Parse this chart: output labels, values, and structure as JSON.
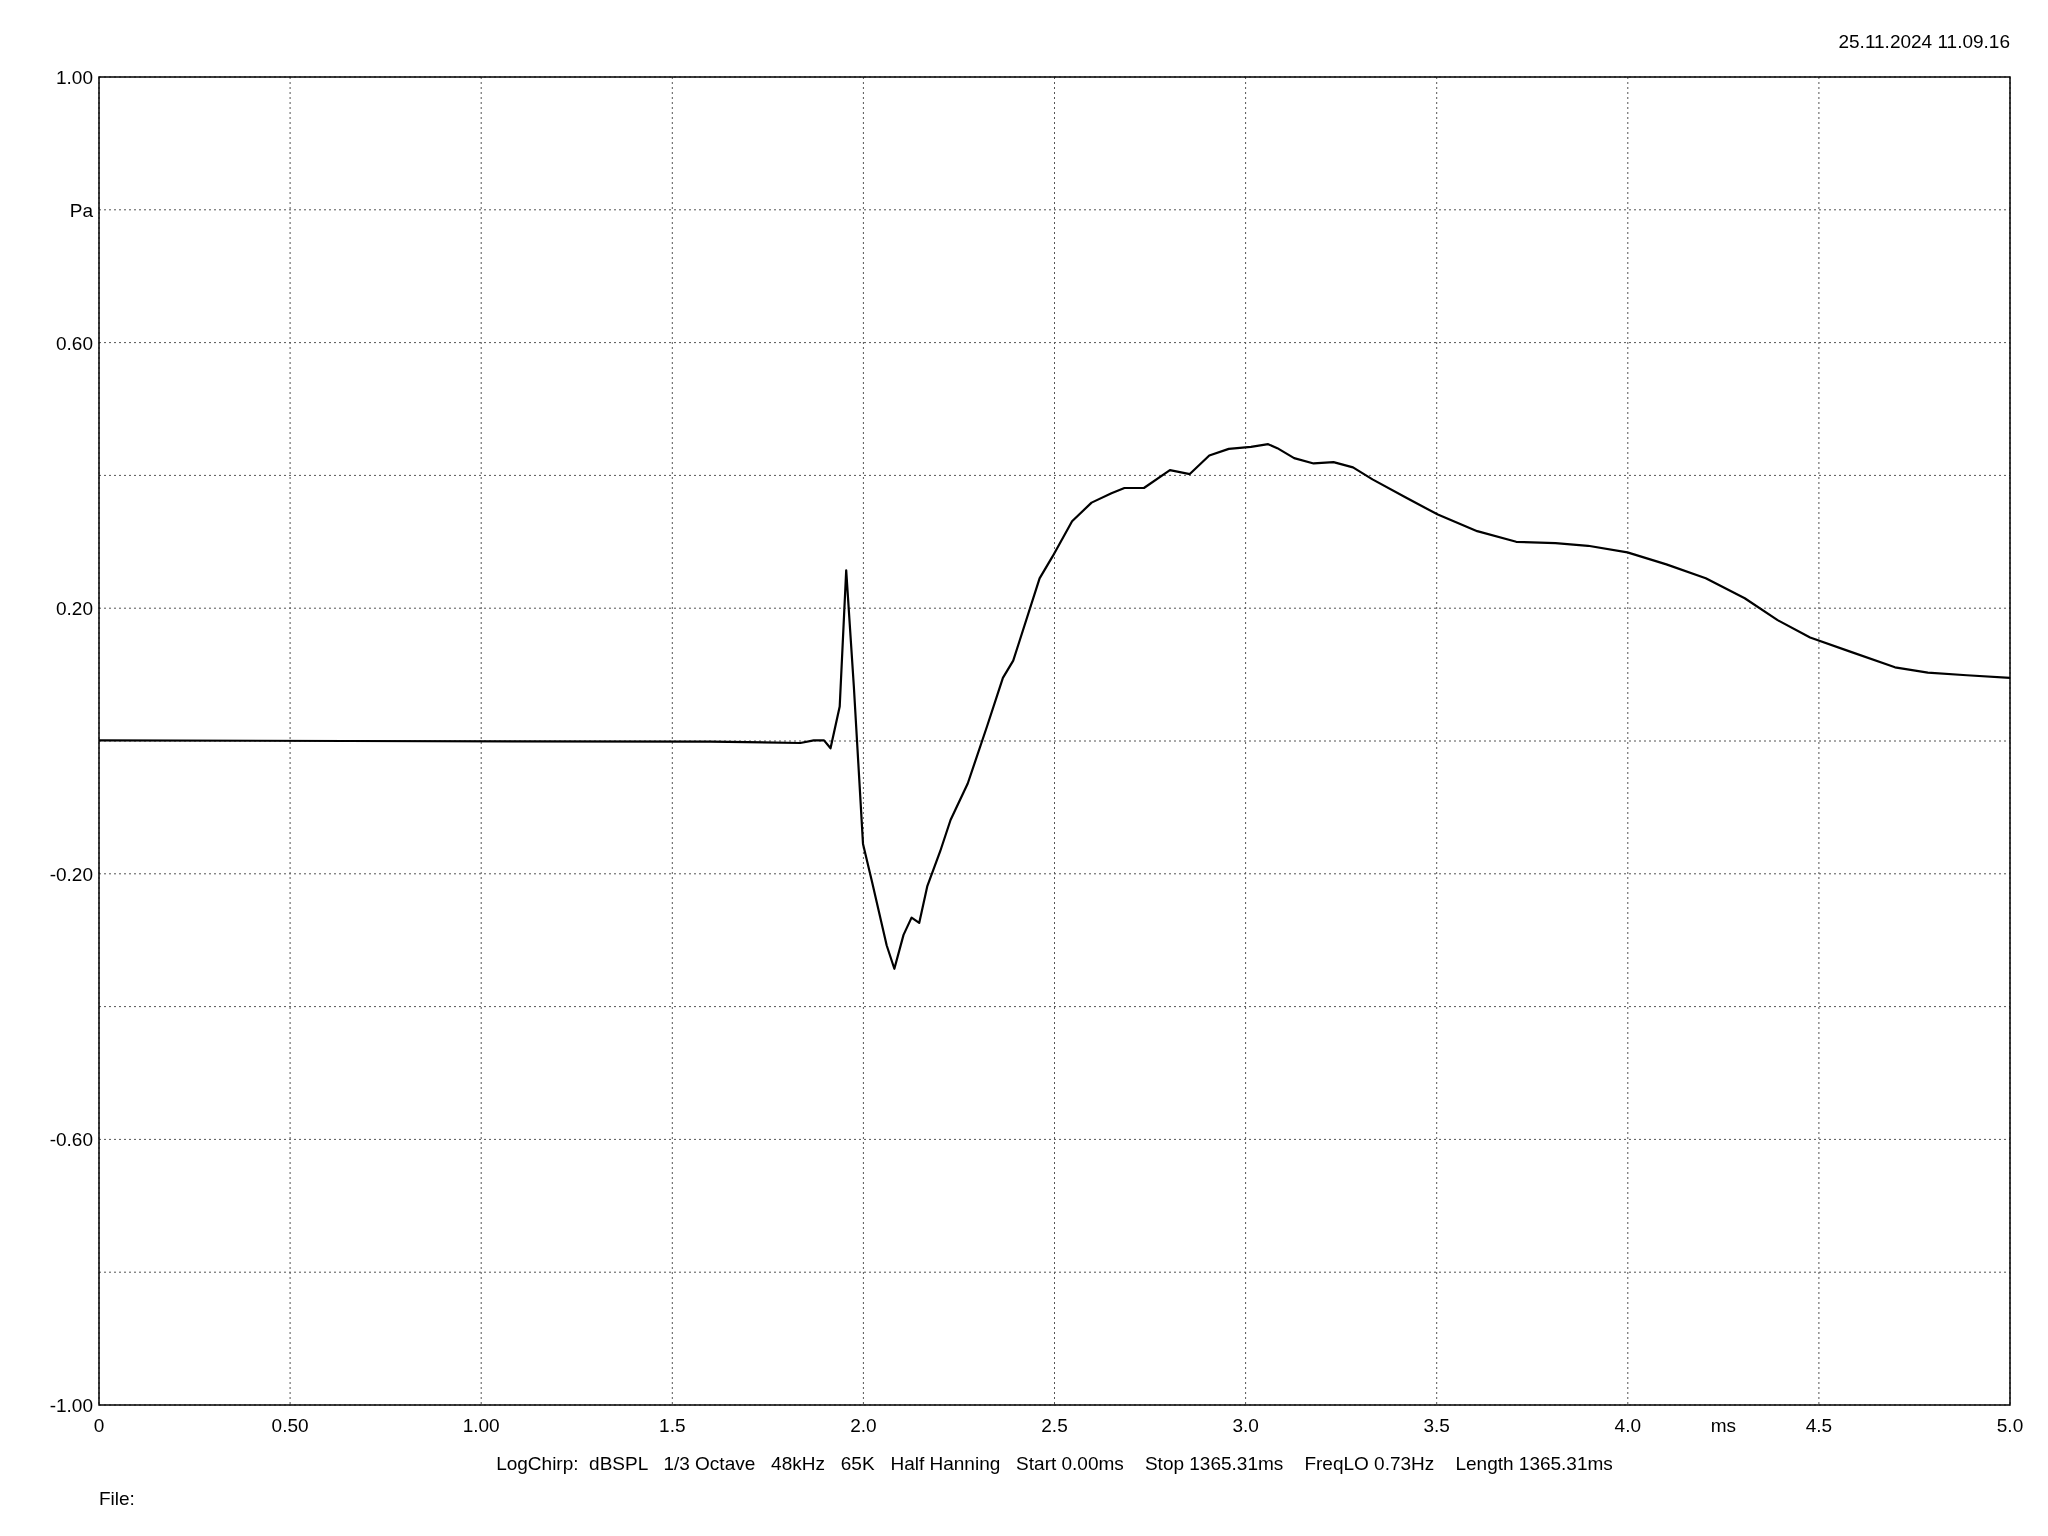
{
  "chart_data": {
    "type": "line",
    "xlabel": "ms",
    "annotations": [
      "25.11.2024 11.09.16",
      "LogChirp:  dBSPL   1/3 Octave   48kHz   65K   Half Hanning   Start 0.00ms    Stop 1365.31ms    FreqLO 0.73Hz    Length 1365.31ms",
      "File:"
    ],
    "xlim": [
      0,
      5
    ],
    "ylim": [
      -1,
      1
    ],
    "xticks": [
      0,
      {
        "value": 0.5,
        "label": "0.50"
      },
      {
        "value": 1,
        "label": "1.00"
      },
      1.5,
      {
        "value": 2,
        "label": "2.0"
      },
      2.5,
      {
        "value": 3,
        "label": "3.0"
      },
      3.5,
      {
        "value": 4,
        "label": "4.0"
      },
      4.5,
      {
        "value": 5,
        "label": "5.0"
      }
    ],
    "yticks": [
      {
        "value": -1,
        "label": "-1.00"
      },
      {
        "value": -0.8,
        "label": null
      },
      {
        "value": -0.6,
        "label": "-0.60"
      },
      {
        "value": -0.4,
        "label": null
      },
      {
        "value": -0.2,
        "label": "-0.20"
      },
      {
        "value": 0,
        "label": null
      },
      {
        "value": 0.2,
        "label": "0.20"
      },
      {
        "value": 0.4,
        "label": null
      },
      {
        "value": 0.6,
        "label": "0.60"
      },
      {
        "value": 0.8,
        "label": "Pa"
      },
      {
        "value": 1,
        "label": "1.00"
      }
    ],
    "grid": true,
    "line_style": "solid",
    "series": [
      {
        "color": "#000000",
        "x": [
          0,
          0.65,
          1.6,
          1.835,
          1.87,
          1.897,
          1.914,
          1.938,
          1.955,
          1.975,
          1.999,
          2.023,
          2.061,
          2.081,
          2.105,
          2.126,
          2.146,
          2.167,
          2.201,
          2.228,
          2.273,
          2.324,
          2.365,
          2.392,
          2.461,
          2.495,
          2.546,
          2.597,
          2.649,
          2.683,
          2.734,
          2.802,
          2.854,
          2.905,
          2.956,
          3.014,
          3.059,
          3.083,
          3.127,
          3.178,
          3.23,
          3.281,
          3.332,
          3.418,
          3.503,
          3.606,
          3.708,
          3.811,
          3.896,
          3.999,
          4.101,
          4.204,
          4.306,
          4.392,
          4.477,
          4.58,
          4.699,
          4.785,
          4.887,
          5.0
        ],
        "values": [
          0.001,
          0.0,
          -0.001,
          -0.003,
          0.001,
          0.001,
          -0.011,
          0.052,
          0.257,
          0.082,
          -0.155,
          -0.213,
          -0.308,
          -0.343,
          -0.292,
          -0.266,
          -0.274,
          -0.219,
          -0.166,
          -0.119,
          -0.064,
          0.023,
          0.095,
          0.121,
          0.245,
          0.278,
          0.331,
          0.359,
          0.373,
          0.381,
          0.381,
          0.408,
          0.402,
          0.43,
          0.44,
          0.443,
          0.447,
          0.441,
          0.426,
          0.418,
          0.42,
          0.412,
          0.394,
          0.367,
          0.341,
          0.316,
          0.3,
          0.298,
          0.294,
          0.284,
          0.266,
          0.245,
          0.215,
          0.182,
          0.156,
          0.135,
          0.111,
          0.103,
          0.099,
          0.095
        ]
      }
    ]
  }
}
